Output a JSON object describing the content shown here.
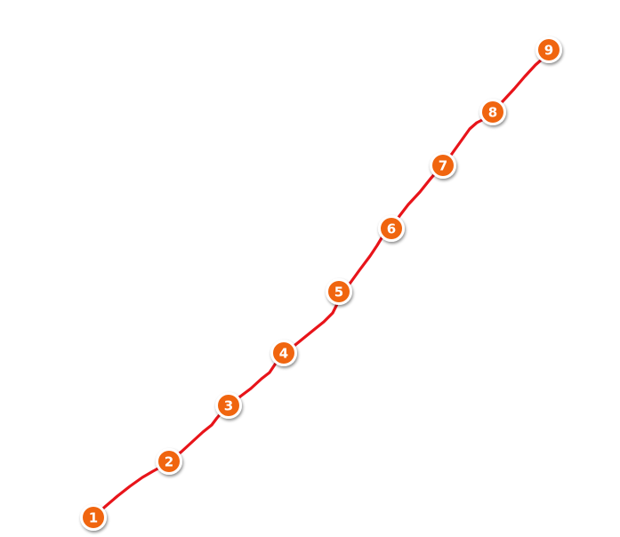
{
  "colors": {
    "route_line": "#e8141a",
    "marker_fill": "#f0650f",
    "marker_ring": "#ffffff",
    "marker_text": "#ffffff",
    "background": "#ffffff"
  },
  "route": {
    "name": "",
    "stops": [
      {
        "label": "1",
        "icon": "numbered-marker"
      },
      {
        "label": "2",
        "icon": "numbered-marker"
      },
      {
        "label": "3",
        "icon": "numbered-marker"
      },
      {
        "label": "4",
        "icon": "numbered-marker"
      },
      {
        "label": "5",
        "icon": "numbered-marker"
      },
      {
        "label": "6",
        "icon": "numbered-marker"
      },
      {
        "label": "7",
        "icon": "numbered-marker"
      },
      {
        "label": "8",
        "icon": "numbered-marker"
      },
      {
        "label": "9",
        "icon": "numbered-marker"
      }
    ]
  }
}
